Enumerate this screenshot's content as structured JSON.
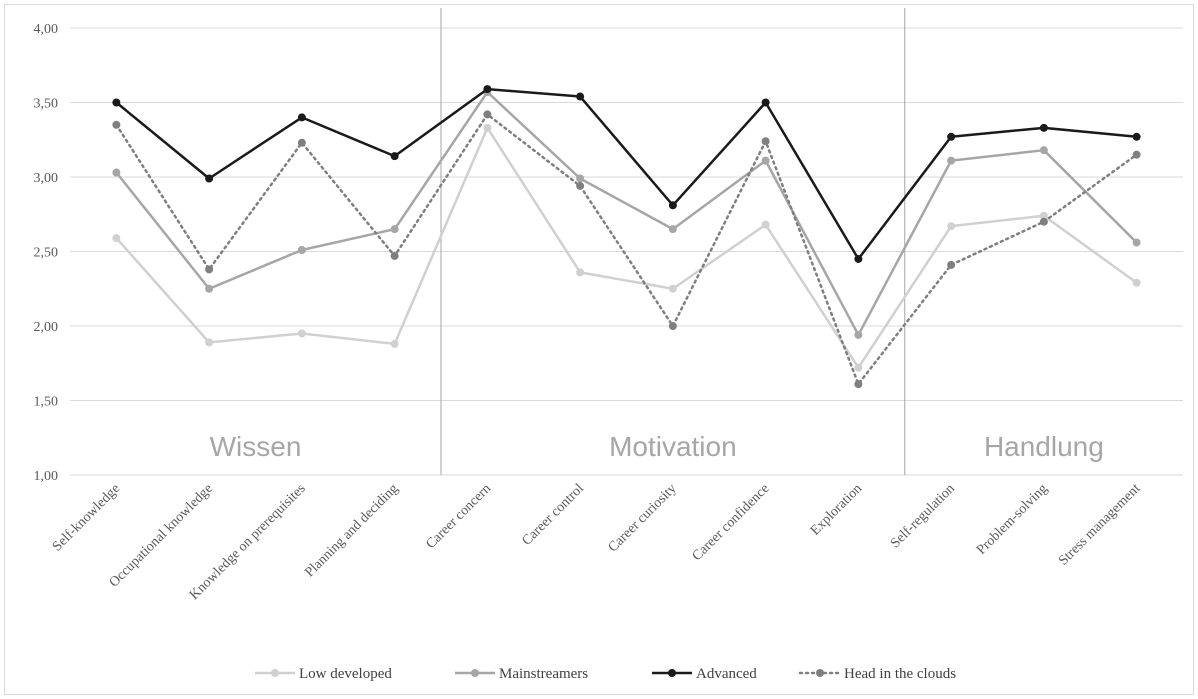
{
  "chart_data": {
    "type": "line",
    "categories": [
      "Self-knowledge",
      "Occupational knowledge",
      "Knowledge on prerequisites",
      "Planning and deciding",
      "Career concern",
      "Career control",
      "Career curiosity",
      "Career confidence",
      "Exploration",
      "Self-regulation",
      "Problem-solving",
      "Stress management"
    ],
    "ylim": [
      1.0,
      4.0
    ],
    "yticks": [
      "1,00",
      "1,50",
      "2,00",
      "2,50",
      "3,00",
      "3,50",
      "4,00"
    ],
    "grid": true,
    "legend_position": "bottom",
    "sections": [
      {
        "label": "Wissen",
        "from": 0,
        "to": 3
      },
      {
        "label": "Motivation",
        "from": 4,
        "to": 8
      },
      {
        "label": "Handlung",
        "from": 9,
        "to": 11
      }
    ],
    "series": [
      {
        "name": "Low developed",
        "color": "#d0d0d0",
        "dash": false,
        "values": [
          2.59,
          1.89,
          1.95,
          1.88,
          3.33,
          2.36,
          2.25,
          2.68,
          1.72,
          2.67,
          2.74,
          2.29
        ]
      },
      {
        "name": "Mainstreamers",
        "color": "#a6a6a6",
        "dash": false,
        "values": [
          3.03,
          2.25,
          2.51,
          2.65,
          3.57,
          2.99,
          2.65,
          3.11,
          1.94,
          3.11,
          3.18,
          2.56
        ]
      },
      {
        "name": "Advanced",
        "color": "#1a1a1a",
        "dash": false,
        "values": [
          3.5,
          2.99,
          3.4,
          3.14,
          3.59,
          3.54,
          2.81,
          3.5,
          2.45,
          3.27,
          3.33,
          3.27
        ]
      },
      {
        "name": "Head in the clouds",
        "color": "#7f7f7f",
        "dash": true,
        "values": [
          3.35,
          2.38,
          3.23,
          2.47,
          3.42,
          2.94,
          2.0,
          3.24,
          1.61,
          2.41,
          2.7,
          3.15
        ]
      }
    ]
  }
}
